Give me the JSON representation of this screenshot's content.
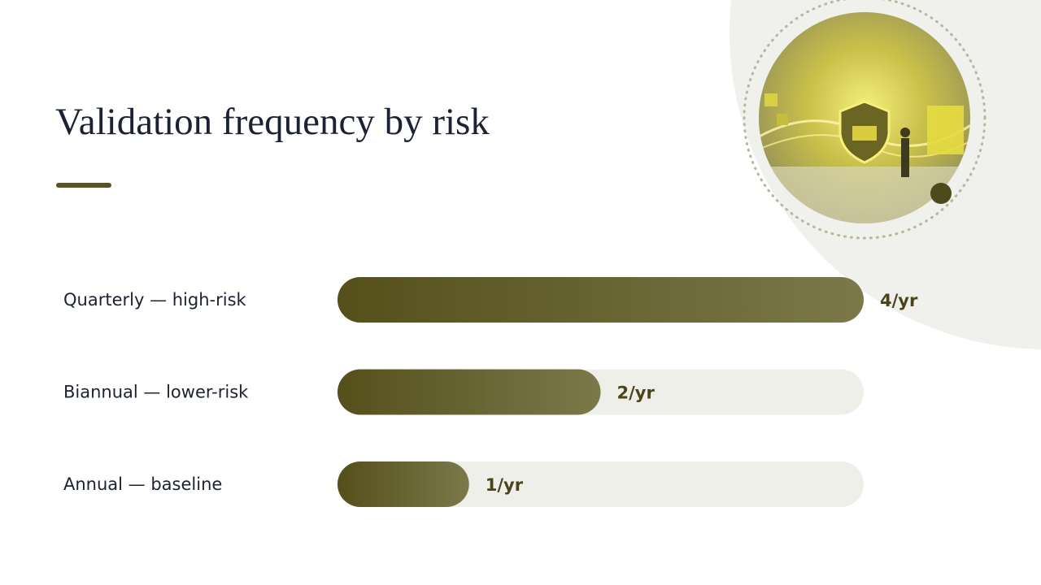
{
  "chart_data": {
    "type": "bar",
    "orientation": "horizontal",
    "title": "Validation frequency by risk",
    "categories": [
      "Quarterly — high-risk",
      "Biannual — lower-risk",
      "Annual — baseline"
    ],
    "values": [
      4,
      2,
      1
    ],
    "value_labels": [
      "4/yr",
      "2/yr",
      "1/yr"
    ],
    "xlim": [
      0,
      4
    ],
    "color": "#57511a"
  }
}
